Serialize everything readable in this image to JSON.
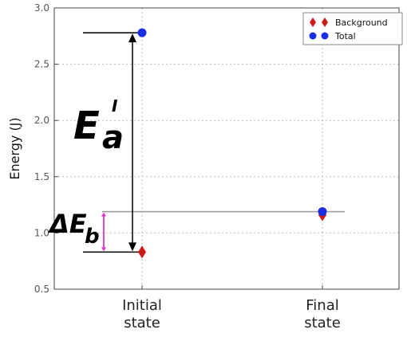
{
  "chart_data": {
    "type": "scatter",
    "categories": [
      "Initial\nstate",
      "Final\nstate"
    ],
    "ylabel": "Energy (J)",
    "ylim": [
      0.5,
      3.0
    ],
    "yticks": [
      "0.5",
      "1.0",
      "1.5",
      "2.0",
      "2.5",
      "3.0"
    ],
    "grid": true,
    "legend_position": "top-right",
    "series": [
      {
        "name": "Background",
        "marker": "diamond",
        "color": "#cc1a1a",
        "values": [
          0.83,
          1.16
        ]
      },
      {
        "name": "Total",
        "marker": "circle",
        "color": "#1a2ee6",
        "values": [
          2.78,
          1.19
        ]
      }
    ],
    "annotations": {
      "activation_energy": {
        "symbol": "E",
        "subscript": "a",
        "superscript": "I",
        "from": 0.83,
        "to": 2.78
      },
      "energy_difference": {
        "symbol": "ΔE",
        "subscript": "b",
        "from": 0.83,
        "to": 1.19,
        "color": "#e633cc"
      }
    }
  }
}
